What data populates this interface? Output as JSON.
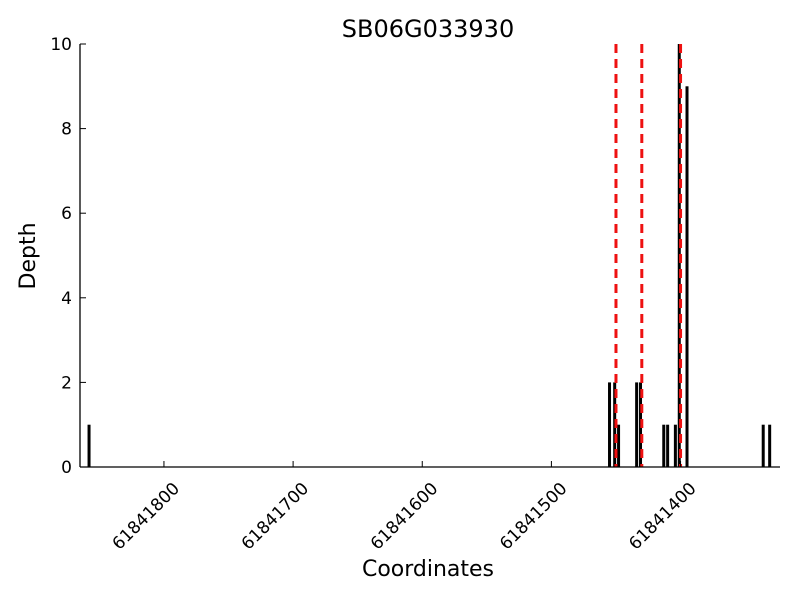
{
  "chart_data": {
    "type": "bar",
    "title": "SB06G033930",
    "xlabel": "Coordinates",
    "ylabel": "Depth",
    "x_reversed": true,
    "xlim": [
      61841865,
      61841323
    ],
    "ylim": [
      0,
      10
    ],
    "x_ticks": [
      61841800,
      61841700,
      61841600,
      61841500,
      61841400
    ],
    "y_ticks": [
      0,
      2,
      4,
      6,
      8,
      10
    ],
    "bars": [
      {
        "x": 61841858,
        "value": 1
      },
      {
        "x": 61841455,
        "value": 2
      },
      {
        "x": 61841451,
        "value": 2
      },
      {
        "x": 61841448,
        "value": 1
      },
      {
        "x": 61841434,
        "value": 2
      },
      {
        "x": 61841431,
        "value": 2
      },
      {
        "x": 61841413,
        "value": 1
      },
      {
        "x": 61841410,
        "value": 1
      },
      {
        "x": 61841404,
        "value": 1
      },
      {
        "x": 61841401,
        "value": 10
      },
      {
        "x": 61841395,
        "value": 9
      },
      {
        "x": 61841336,
        "value": 1
      },
      {
        "x": 61841331,
        "value": 1
      }
    ],
    "vlines": [
      61841450,
      61841430,
      61841400
    ],
    "colors": {
      "bar": "#000000",
      "vline": "#ee1111",
      "axis": "#000000"
    },
    "grid": false
  }
}
